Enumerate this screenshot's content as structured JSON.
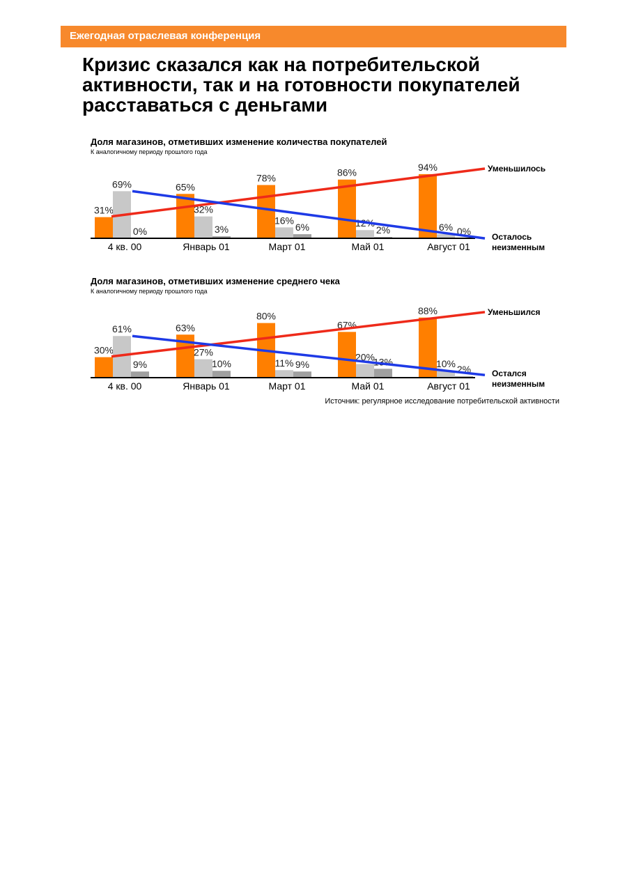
{
  "header": {
    "title": "Ежегодная отраслевая конференция"
  },
  "slide": {
    "title": "Кризис сказался как на потребительской активности, так и на готовности покупателей расставаться с деньгами"
  },
  "source": "Источник: регулярное исследование потребительской активности",
  "colors": {
    "accent": "#f7892c",
    "bar_orange": "#ff7f00",
    "bar_light": "#c8c8c8",
    "bar_dark": "#a0a0a0",
    "trend_red": "#ee2a1a",
    "trend_blue": "#1e3ae6"
  },
  "chart_data": [
    {
      "type": "bar",
      "title": "Доля магазинов, отметивших изменение количества покупателей",
      "subtitle": "К аналогичному периоду прошлого года",
      "categories": [
        "4 кв. 00",
        "Январь 01",
        "Март 01",
        "Май 01",
        "Август 01"
      ],
      "series": [
        {
          "values": [
            31,
            65,
            78,
            86,
            94
          ]
        },
        {
          "values": [
            69,
            32,
            16,
            12,
            6
          ]
        },
        {
          "values": [
            0,
            3,
            6,
            2,
            0
          ]
        }
      ],
      "value_labels": [
        [
          "31%",
          "65%",
          "78%",
          "86%",
          "94%"
        ],
        [
          "69%",
          "32%",
          "16%",
          "12%",
          "6%"
        ],
        [
          "0%",
          "3%",
          "6%",
          "2%",
          "0%"
        ]
      ],
      "trend_labels": {
        "up": "Уменьшилось",
        "down_line1": "Осталось",
        "down_line2": "неизменным"
      },
      "ylim": [
        0,
        100
      ]
    },
    {
      "type": "bar",
      "title": "Доля магазинов, отметивших изменение среднего чека",
      "subtitle": "К аналогичному периоду прошлого года",
      "categories": [
        "4 кв. 00",
        "Январь 01",
        "Март 01",
        "Май 01",
        "Август 01"
      ],
      "series": [
        {
          "values": [
            30,
            63,
            80,
            67,
            88
          ]
        },
        {
          "values": [
            61,
            27,
            11,
            20,
            10
          ]
        },
        {
          "values": [
            9,
            10,
            9,
            13,
            2
          ]
        }
      ],
      "value_labels": [
        [
          "30%",
          "63%",
          "80%",
          "67%",
          "88%"
        ],
        [
          "61%",
          "27%",
          "11%",
          "20%",
          "10%"
        ],
        [
          "9%",
          "10%",
          "9%",
          "13%",
          "2%"
        ]
      ],
      "trend_labels": {
        "up": "Уменьшился",
        "down_line1": "Остался",
        "down_line2": "неизменным"
      },
      "ylim": [
        0,
        100
      ]
    }
  ]
}
